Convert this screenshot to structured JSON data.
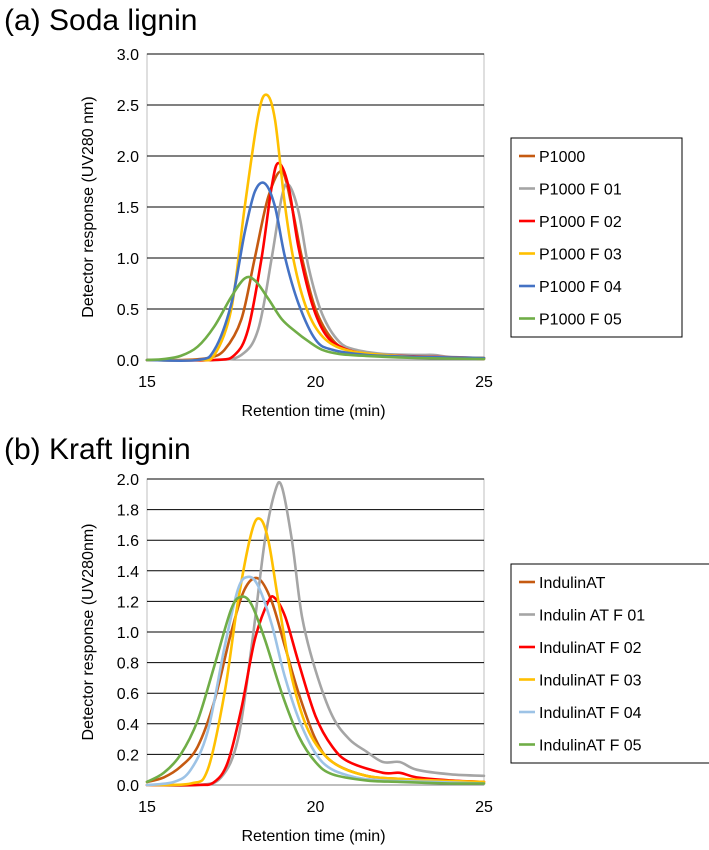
{
  "chart_data": [
    {
      "type": "line",
      "title": "(a) Soda lignin",
      "xlabel": "Retention time (min)",
      "ylabel": "Detector response (UV280 nm)",
      "xlim": [
        15,
        25
      ],
      "ylim": [
        0,
        3.0
      ],
      "xticks": [
        "15",
        "20",
        "25"
      ],
      "yticks": [
        "0.0",
        "0.5",
        "1.0",
        "1.5",
        "2.0",
        "2.5",
        "3.0"
      ],
      "grid": "horizontal",
      "legend": "right",
      "series": [
        {
          "name": "P1000",
          "color": "#C55A11",
          "x": [
            15,
            16,
            16.8,
            17.3,
            17.8,
            18.2,
            18.6,
            19.0,
            19.3,
            19.6,
            20.0,
            20.5,
            21,
            22,
            23,
            24,
            25
          ],
          "y": [
            0,
            0,
            0.02,
            0.1,
            0.4,
            1.0,
            1.6,
            1.85,
            1.5,
            1.0,
            0.5,
            0.2,
            0.1,
            0.05,
            0.03,
            0.02,
            0.01
          ]
        },
        {
          "name": "P1000 F 01",
          "color": "#A5A5A5",
          "x": [
            15,
            17,
            17.8,
            18.3,
            18.7,
            19.0,
            19.2,
            19.5,
            19.8,
            20.2,
            20.7,
            21.2,
            22,
            23,
            23.5,
            24,
            25
          ],
          "y": [
            0,
            0,
            0.05,
            0.3,
            1.0,
            1.6,
            1.72,
            1.45,
            0.9,
            0.45,
            0.18,
            0.1,
            0.06,
            0.05,
            0.05,
            0.03,
            0.02
          ]
        },
        {
          "name": "P1000 F 02",
          "color": "#FF0000",
          "x": [
            15,
            17,
            17.6,
            18.0,
            18.4,
            18.7,
            18.9,
            19.2,
            19.5,
            19.9,
            20.3,
            20.8,
            21.5,
            22.5,
            23.5,
            25
          ],
          "y": [
            0,
            0,
            0.05,
            0.3,
            1.0,
            1.7,
            1.93,
            1.7,
            1.1,
            0.55,
            0.25,
            0.12,
            0.06,
            0.04,
            0.03,
            0.02
          ]
        },
        {
          "name": "P1000 F 03",
          "color": "#FFC000",
          "x": [
            15,
            16.5,
            17.0,
            17.5,
            17.9,
            18.3,
            18.55,
            18.8,
            19.1,
            19.4,
            19.8,
            20.3,
            21,
            22,
            23,
            25
          ],
          "y": [
            0,
            0,
            0.05,
            0.5,
            1.5,
            2.4,
            2.6,
            2.35,
            1.5,
            0.9,
            0.45,
            0.2,
            0.09,
            0.05,
            0.03,
            0.02
          ]
        },
        {
          "name": "P1000 F 04",
          "color": "#4472C4",
          "x": [
            15,
            16.5,
            17.0,
            17.5,
            17.9,
            18.2,
            18.5,
            18.8,
            19.1,
            19.5,
            20.0,
            20.5,
            21.5,
            23,
            25
          ],
          "y": [
            0,
            0,
            0.1,
            0.55,
            1.25,
            1.65,
            1.73,
            1.5,
            1.0,
            0.55,
            0.2,
            0.1,
            0.05,
            0.03,
            0.02
          ]
        },
        {
          "name": "P1000 F 05",
          "color": "#70AD47",
          "x": [
            15,
            15.5,
            16,
            16.5,
            17.0,
            17.5,
            17.9,
            18.2,
            18.6,
            19.0,
            19.4,
            19.8,
            20.2,
            20.7,
            21.5,
            23,
            25
          ],
          "y": [
            0,
            0.01,
            0.04,
            0.13,
            0.33,
            0.62,
            0.8,
            0.78,
            0.6,
            0.4,
            0.28,
            0.18,
            0.1,
            0.06,
            0.04,
            0.02,
            0.01
          ]
        }
      ]
    },
    {
      "type": "line",
      "title": "(b) Kraft lignin",
      "xlabel": "Retention time (min)",
      "ylabel": "Detector response (UV280nm)",
      "xlim": [
        15,
        25
      ],
      "ylim": [
        0,
        2.0
      ],
      "xticks": [
        "15",
        "20",
        "25"
      ],
      "yticks": [
        "0.0",
        "0.2",
        "0.4",
        "0.6",
        "0.8",
        "1.0",
        "1.2",
        "1.4",
        "1.6",
        "1.8",
        "2.0"
      ],
      "grid": "horizontal",
      "legend": "right",
      "series": [
        {
          "name": "IndulinAT",
          "color": "#C55A11",
          "x": [
            15,
            15.5,
            16.0,
            16.5,
            17.0,
            17.5,
            17.9,
            18.3,
            18.7,
            19.1,
            19.5,
            20.0,
            20.5,
            21.5,
            22.5,
            23.5,
            25
          ],
          "y": [
            0.02,
            0.05,
            0.12,
            0.25,
            0.55,
            1.0,
            1.28,
            1.35,
            1.2,
            0.9,
            0.6,
            0.3,
            0.15,
            0.06,
            0.04,
            0.03,
            0.02
          ]
        },
        {
          "name": "Indulin AT F 01",
          "color": "#A5A5A5",
          "x": [
            15,
            16.5,
            17.2,
            17.7,
            18.1,
            18.5,
            18.8,
            19.0,
            19.3,
            19.6,
            20.0,
            20.5,
            21.0,
            21.5,
            22.0,
            22.5,
            23.0,
            24.0,
            25
          ],
          "y": [
            0,
            0,
            0.05,
            0.3,
            0.9,
            1.6,
            1.92,
            1.95,
            1.6,
            1.1,
            0.75,
            0.45,
            0.3,
            0.22,
            0.15,
            0.15,
            0.1,
            0.07,
            0.06
          ]
        },
        {
          "name": "IndulinAT F 02",
          "color": "#FF0000",
          "x": [
            15,
            16.5,
            17.0,
            17.4,
            17.8,
            18.2,
            18.6,
            18.8,
            19.1,
            19.5,
            20.0,
            20.5,
            21.0,
            22.0,
            22.5,
            23.0,
            24.0,
            25
          ],
          "y": [
            0,
            0,
            0.02,
            0.15,
            0.5,
            0.95,
            1.2,
            1.22,
            1.1,
            0.8,
            0.45,
            0.25,
            0.15,
            0.08,
            0.08,
            0.05,
            0.03,
            0.02
          ]
        },
        {
          "name": "IndulinAT F 03",
          "color": "#FFC000",
          "x": [
            15,
            16.3,
            16.8,
            17.3,
            17.7,
            18.1,
            18.35,
            18.6,
            18.9,
            19.3,
            19.8,
            20.5,
            21.5,
            22.5,
            23.5,
            25
          ],
          "y": [
            0,
            0.01,
            0.1,
            0.6,
            1.2,
            1.65,
            1.74,
            1.6,
            1.2,
            0.7,
            0.35,
            0.15,
            0.06,
            0.04,
            0.03,
            0.02
          ]
        },
        {
          "name": "IndulinAT F 04",
          "color": "#9DC3E6",
          "x": [
            15,
            15.8,
            16.3,
            16.8,
            17.3,
            17.7,
            18.0,
            18.3,
            18.7,
            19.1,
            19.6,
            20.2,
            21.0,
            22.0,
            23.5,
            25
          ],
          "y": [
            0,
            0.02,
            0.1,
            0.35,
            0.9,
            1.28,
            1.36,
            1.3,
            1.05,
            0.7,
            0.38,
            0.15,
            0.06,
            0.03,
            0.02,
            0.01
          ]
        },
        {
          "name": "IndulinAT F 05",
          "color": "#70AD47",
          "x": [
            15,
            15.5,
            16.0,
            16.5,
            17.0,
            17.5,
            17.8,
            18.1,
            18.5,
            19.0,
            19.5,
            20.0,
            20.5,
            21.5,
            22.5,
            24.0,
            25
          ],
          "y": [
            0.02,
            0.08,
            0.2,
            0.42,
            0.78,
            1.15,
            1.23,
            1.18,
            0.95,
            0.6,
            0.32,
            0.15,
            0.07,
            0.03,
            0.02,
            0.01,
            0.01
          ]
        }
      ]
    }
  ]
}
